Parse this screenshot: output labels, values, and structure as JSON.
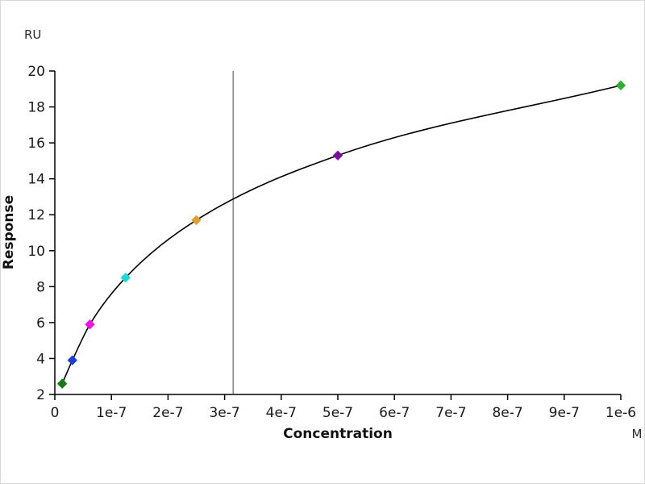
{
  "chart_data": {
    "type": "scatter",
    "title": "",
    "xlabel": "Concentration",
    "x_unit": "M",
    "ylabel": "Response",
    "y_unit": "RU",
    "xlim": [
      0,
      1e-06
    ],
    "ylim": [
      2,
      20
    ],
    "x_ticks": [
      "0",
      "1e-7",
      "2e-7",
      "3e-7",
      "4e-7",
      "5e-7",
      "6e-7",
      "7e-7",
      "8e-7",
      "9e-7",
      "1e-6"
    ],
    "y_ticks": [
      2,
      4,
      6,
      8,
      10,
      12,
      14,
      16,
      18,
      20
    ],
    "grid": false,
    "legend_position": "none",
    "curve_color": "#000000",
    "kd_marker_x": 3.15e-07,
    "kd_marker_color": "#4a4a4a",
    "axis_color": "#000000",
    "points": [
      {
        "x": 1.3e-08,
        "y": 2.6,
        "color": "#157a15"
      },
      {
        "x": 3.1e-08,
        "y": 3.9,
        "color": "#1f3fd0"
      },
      {
        "x": 6.2e-08,
        "y": 5.9,
        "color": "#ee14e0"
      },
      {
        "x": 1.25e-07,
        "y": 8.5,
        "color": "#1fd7d7"
      },
      {
        "x": 2.5e-07,
        "y": 11.7,
        "color": "#e0a030"
      },
      {
        "x": 5e-07,
        "y": 15.3,
        "color": "#7a0f9e"
      },
      {
        "x": 1e-06,
        "y": 19.2,
        "color": "#2fae2f"
      }
    ]
  }
}
